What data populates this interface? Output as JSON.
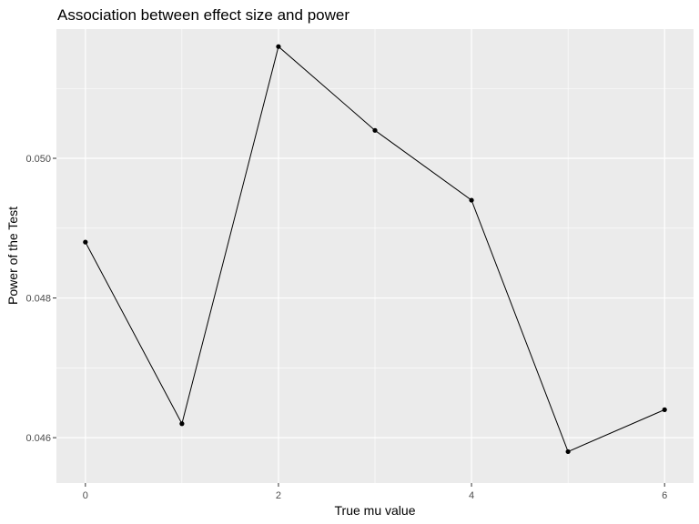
{
  "chart_data": {
    "type": "line",
    "title": "Association between effect size and power",
    "xlabel": "True mu value",
    "ylabel": "Power of the Test",
    "x": [
      0,
      1,
      2,
      3,
      4,
      5,
      6
    ],
    "y": [
      0.0488,
      0.0462,
      0.0516,
      0.0504,
      0.0494,
      0.0458,
      0.0464
    ],
    "xlim": [
      -0.3,
      6.3
    ],
    "ylim": [
      0.04535,
      0.05185
    ],
    "xticks": [
      0,
      2,
      4,
      6
    ],
    "yticks": [
      0.046,
      0.048,
      0.05
    ],
    "ytick_labels": [
      "0.046",
      "0.048",
      "0.050"
    ],
    "grid": true,
    "legend": "none",
    "colors": {
      "panel_background": "#ebebeb",
      "grid_major": "#ffffff",
      "line": "#000000",
      "point": "#000000"
    }
  }
}
